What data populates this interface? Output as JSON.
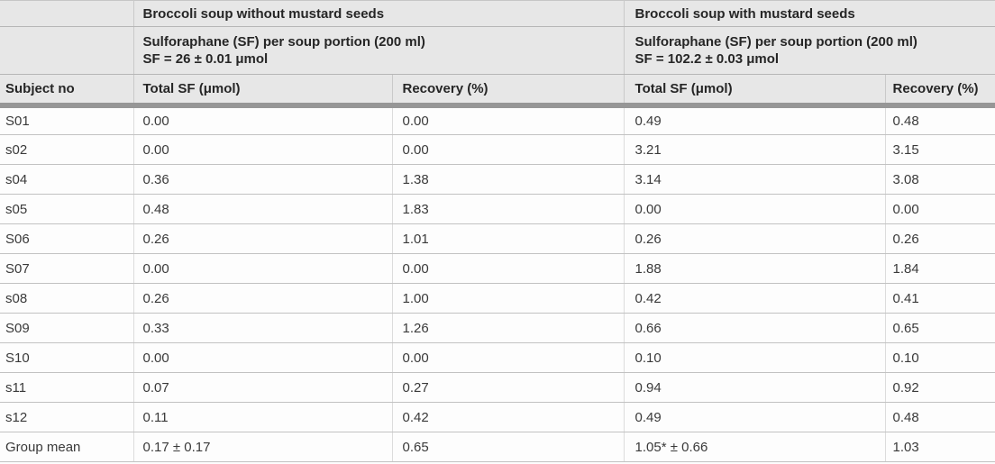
{
  "table": {
    "group_headers": [
      {
        "label": "Broccoli soup without mustard seeds"
      },
      {
        "label": "Broccoli soup with mustard seeds"
      }
    ],
    "sub_headers": [
      {
        "line1": "Sulforaphane (SF) per soup portion (200 ml)",
        "line2": "SF = 26 ± 0.01 μmol"
      },
      {
        "line1": "Sulforaphane (SF) per soup portion (200 ml)",
        "line2": "SF = 102.2 ± 0.03 μmol"
      }
    ],
    "columns": [
      "Subject no",
      "Total SF (μmol)",
      "Recovery (%)",
      "Total SF (μmol)",
      "Recovery (%)"
    ],
    "rows": [
      {
        "subject": "S01",
        "without_total_sf": "0.00",
        "without_recovery": "0.00",
        "with_total_sf": "0.49",
        "with_recovery": "0.48"
      },
      {
        "subject": "s02",
        "without_total_sf": "0.00",
        "without_recovery": "0.00",
        "with_total_sf": "3.21",
        "with_recovery": "3.15"
      },
      {
        "subject": "s04",
        "without_total_sf": "0.36",
        "without_recovery": "1.38",
        "with_total_sf": "3.14",
        "with_recovery": "3.08"
      },
      {
        "subject": "s05",
        "without_total_sf": "0.48",
        "without_recovery": "1.83",
        "with_total_sf": "0.00",
        "with_recovery": "0.00"
      },
      {
        "subject": "S06",
        "without_total_sf": "0.26",
        "without_recovery": "1.01",
        "with_total_sf": "0.26",
        "with_recovery": "0.26"
      },
      {
        "subject": "S07",
        "without_total_sf": "0.00",
        "without_recovery": "0.00",
        "with_total_sf": "1.88",
        "with_recovery": "1.84"
      },
      {
        "subject": "s08",
        "without_total_sf": "0.26",
        "without_recovery": "1.00",
        "with_total_sf": "0.42",
        "with_recovery": "0.41"
      },
      {
        "subject": "S09",
        "without_total_sf": "0.33",
        "without_recovery": "1.26",
        "with_total_sf": "0.66",
        "with_recovery": "0.65"
      },
      {
        "subject": "S10",
        "without_total_sf": "0.00",
        "without_recovery": "0.00",
        "with_total_sf": "0.10",
        "with_recovery": "0.10"
      },
      {
        "subject": "s11",
        "without_total_sf": "0.07",
        "without_recovery": "0.27",
        "with_total_sf": "0.94",
        "with_recovery": "0.92"
      },
      {
        "subject": "s12",
        "without_total_sf": "0.11",
        "without_recovery": "0.42",
        "with_total_sf": "0.49",
        "with_recovery": "0.48"
      },
      {
        "subject": "Group mean",
        "without_total_sf": "0.17 ± 0.17",
        "without_recovery": "0.65",
        "with_total_sf": "1.05* ± 0.66",
        "with_recovery": "1.03"
      }
    ]
  },
  "colors": {
    "header_background": "#e7e7e7",
    "divider_band": "#969696",
    "row_border": "#c2c2c2",
    "column_border": "#dcdcdc",
    "header_text": "#262626",
    "data_text": "#3a3a3a",
    "data_background": "#fdfdfd"
  }
}
